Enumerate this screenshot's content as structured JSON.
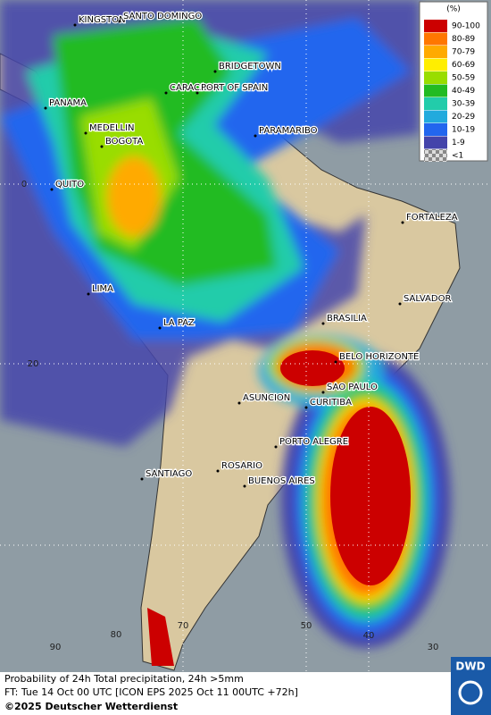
{
  "legend": {
    "title": "(%)",
    "items": [
      {
        "label": "90-100",
        "color": "#cc0000"
      },
      {
        "label": "80-89",
        "color": "#ff7700"
      },
      {
        "label": "70-79",
        "color": "#ffaa00"
      },
      {
        "label": "60-69",
        "color": "#ffee00"
      },
      {
        "label": "50-59",
        "color": "#99dd00"
      },
      {
        "label": "40-49",
        "color": "#22bb22"
      },
      {
        "label": "30-39",
        "color": "#22ccaa"
      },
      {
        "label": "20-29",
        "color": "#22aadd"
      },
      {
        "label": "10-19",
        "color": "#2266ee"
      },
      {
        "label": "1-9",
        "color": "#4444aa"
      },
      {
        "label": "<1",
        "color": "checker"
      }
    ]
  },
  "places": [
    "KINGSTON",
    "SANTO DOMINGO",
    "BRIDGETOWN",
    "CARACAS",
    "PORT OF SPAIN",
    "PANAMA",
    "MEDELLIN",
    "BOGOTA",
    "PARAMARIBO",
    "QUITO",
    "FORTALEZA",
    "LIMA",
    "SALVADOR",
    "BRASILIA",
    "LA PAZ",
    "BELO HORIZONTE",
    "SAO PAULO",
    "ASUNCION",
    "CURITIBA",
    "PORTO ALEGRE",
    "ROSARIO",
    "BUENOS AIRES",
    "SANTIAGO"
  ],
  "grid_labels": [
    "0",
    "20",
    "70",
    "80",
    "90",
    "50",
    "40",
    "30"
  ],
  "footer": {
    "line1": "Probability of 24h Total precipitation, 24h >5mm",
    "line2": "FT: Tue 14 Oct 00 UTC [ICON EPS 2025 Oct 11 00UTC +72h]",
    "line3": "©2025 Deutscher Wetterdienst"
  },
  "logo": "DWD"
}
